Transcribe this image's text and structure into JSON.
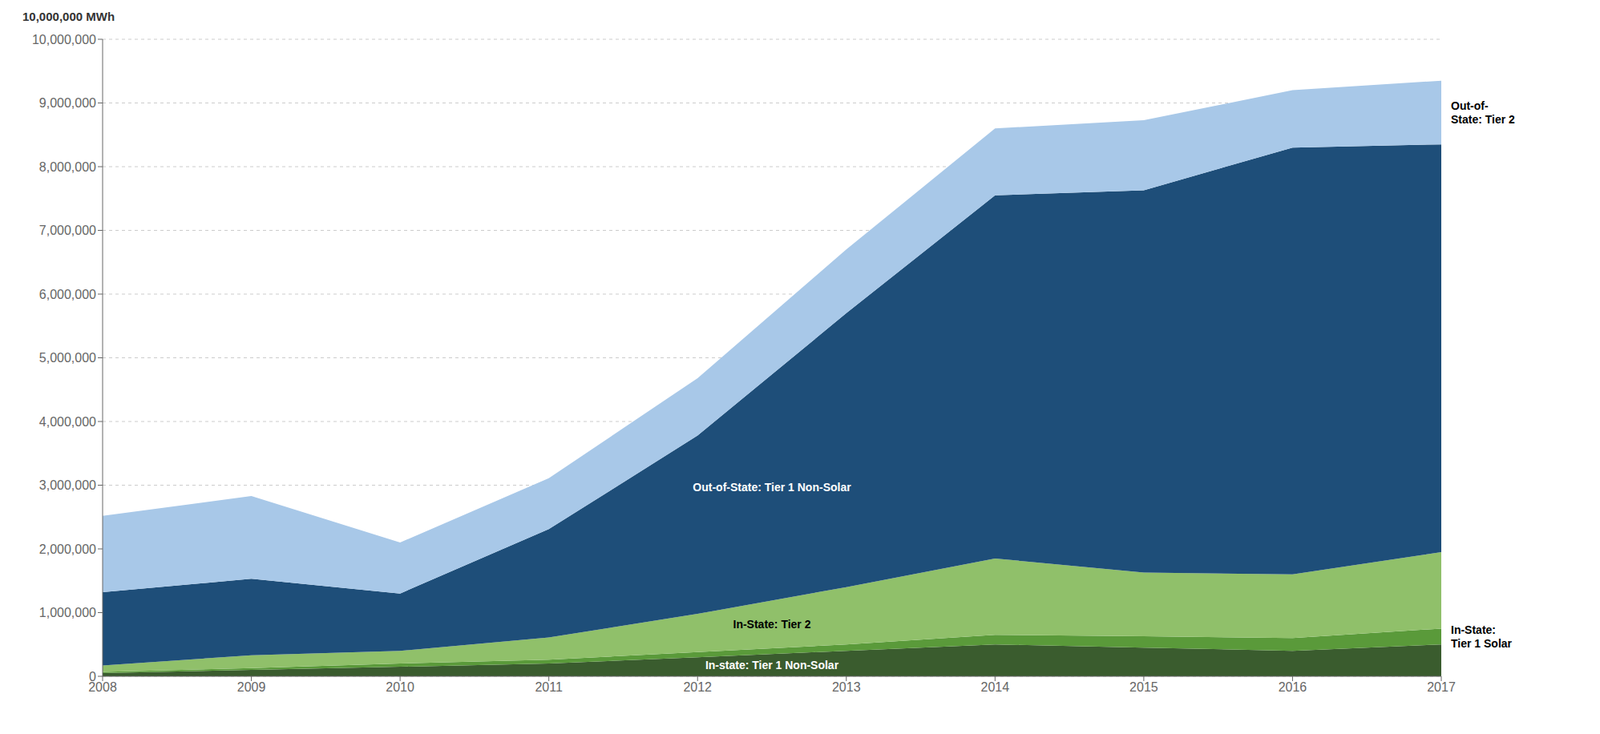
{
  "chart_data": {
    "type": "area",
    "stacked": true,
    "ylabel": "10,000,000 MWh",
    "x": [
      2008,
      2009,
      2010,
      2011,
      2012,
      2013,
      2014,
      2015,
      2016,
      2017
    ],
    "xlim": [
      2008,
      2017
    ],
    "xticks": [
      2008,
      2009,
      2010,
      2011,
      2012,
      2013,
      2014,
      2015,
      2016,
      2017
    ],
    "ylim": [
      0,
      10000000
    ],
    "yticks": [
      0,
      {
        "value": 1000000,
        "label": "1,000,000"
      },
      {
        "value": 2000000,
        "label": "2,000,000"
      },
      {
        "value": 3000000,
        "label": "3,000,000"
      },
      {
        "value": 4000000,
        "label": "4,000,000"
      },
      {
        "value": 5000000,
        "label": "5,000,000"
      },
      {
        "value": 6000000,
        "label": "6,000,000"
      },
      {
        "value": 7000000,
        "label": "7,000,000"
      },
      {
        "value": 8000000,
        "label": "8,000,000"
      },
      {
        "value": 9000000,
        "label": "9,000,000"
      },
      {
        "value": 10000000,
        "label": "10,000,000"
      }
    ],
    "grid": true,
    "series": [
      {
        "name": "In-state: Tier 1 Non-Solar",
        "color": "#3a5c2e",
        "values": [
          50000,
          100000,
          150000,
          200000,
          300000,
          400000,
          500000,
          450000,
          400000,
          500000
        ]
      },
      {
        "name": "In-State:\nTier 1 Solar",
        "color": "#5a9a3a",
        "values": [
          20000,
          30000,
          50000,
          60000,
          80000,
          100000,
          150000,
          180000,
          200000,
          250000
        ]
      },
      {
        "name": "In-State: Tier 2",
        "color": "#90c06a",
        "values": [
          100000,
          200000,
          200000,
          350000,
          600000,
          900000,
          1200000,
          1000000,
          1000000,
          1200000
        ]
      },
      {
        "name": "Out-of-State: Tier 1 Non-Solar",
        "color": "#1e4e79",
        "values": [
          1150000,
          1200000,
          900000,
          1700000,
          2800000,
          4300000,
          5700000,
          6000000,
          6700000,
          6400000
        ]
      },
      {
        "name": "Out-of-\nState: Tier 2",
        "color": "#a8c8e8",
        "values": [
          1200000,
          1300000,
          800000,
          800000,
          900000,
          1000000,
          1050000,
          1100000,
          900000,
          1000000
        ]
      }
    ]
  }
}
